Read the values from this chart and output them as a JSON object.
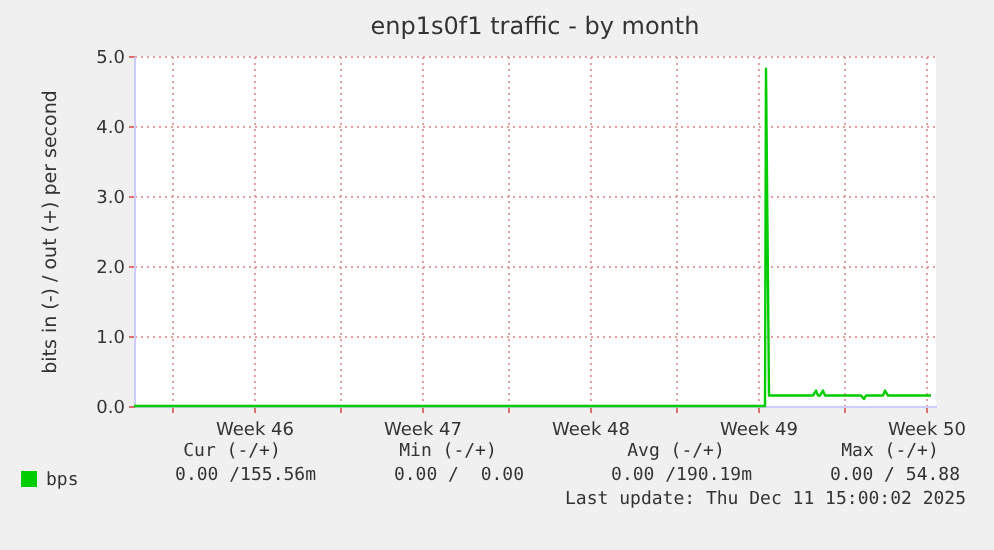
{
  "chart_data": {
    "type": "line",
    "title": "enp1s0f1 traffic - by month",
    "ylabel": "bits in (-) / out (+) per second",
    "xlim": [
      "2025-11-08T10:00",
      "2025-12-11T20:00"
    ],
    "ylim": [
      0,
      5
    ],
    "xticks": [
      {
        "value": "2025-11-10T00:00",
        "label": null
      },
      {
        "value": "2025-11-13T10:00",
        "label": "Week 46"
      },
      {
        "value": "2025-11-17T00:00",
        "label": null
      },
      {
        "value": "2025-11-20T10:00",
        "label": "Week 47"
      },
      {
        "value": "2025-11-24T00:00",
        "label": null
      },
      {
        "value": "2025-11-27T10:00",
        "label": "Week 48"
      },
      {
        "value": "2025-12-01T00:00",
        "label": null
      },
      {
        "value": "2025-12-04T10:00",
        "label": "Week 49"
      },
      {
        "value": "2025-12-08T00:00",
        "label": null
      },
      {
        "value": "2025-12-11T10:00",
        "label": "Week 50"
      }
    ],
    "yticks": [
      {
        "value": 0,
        "label": "0.0"
      },
      {
        "value": 1,
        "label": "1.0"
      },
      {
        "value": 2,
        "label": "2.0"
      },
      {
        "value": 3,
        "label": "3.0"
      },
      {
        "value": 4,
        "label": "4.0"
      },
      {
        "value": 5,
        "label": "5.0"
      }
    ],
    "grid": true,
    "legend": "bottom left",
    "marker": "none",
    "line_style": "solid",
    "series": [
      {
        "name": "bps",
        "color": "#00cc00",
        "x": [
          "2025-11-08T10:00",
          "2025-12-04T17:00",
          "2025-12-04T18:00",
          "2025-12-04T21:00",
          "2025-12-06T17:00",
          "2025-12-06T20:00",
          "2025-12-06T22:00",
          "2025-12-07T00:00",
          "2025-12-07T03:00",
          "2025-12-07T05:00",
          "2025-12-08T17:00",
          "2025-12-08T20:00",
          "2025-12-08T22:00",
          "2025-12-09T15:00",
          "2025-12-09T17:00",
          "2025-12-09T20:00",
          "2025-12-11T15:00"
        ],
        "values": [
          0,
          0,
          4.82,
          0.15,
          0.15,
          0.22,
          0.15,
          0.15,
          0.22,
          0.15,
          0.15,
          0.1,
          0.15,
          0.15,
          0.22,
          0.15,
          0.15
        ]
      }
    ],
    "annotations": [
      "Cur (-/+)",
      "Min (-/+)",
      "Avg (-/+)",
      "Max (-/+)",
      "0.00 /155.56m",
      "0.00 /  0.00",
      "0.00 /190.19m",
      "0.00 / 54.88",
      "Last update: Thu Dec 11 15:00:02 2025"
    ]
  }
}
